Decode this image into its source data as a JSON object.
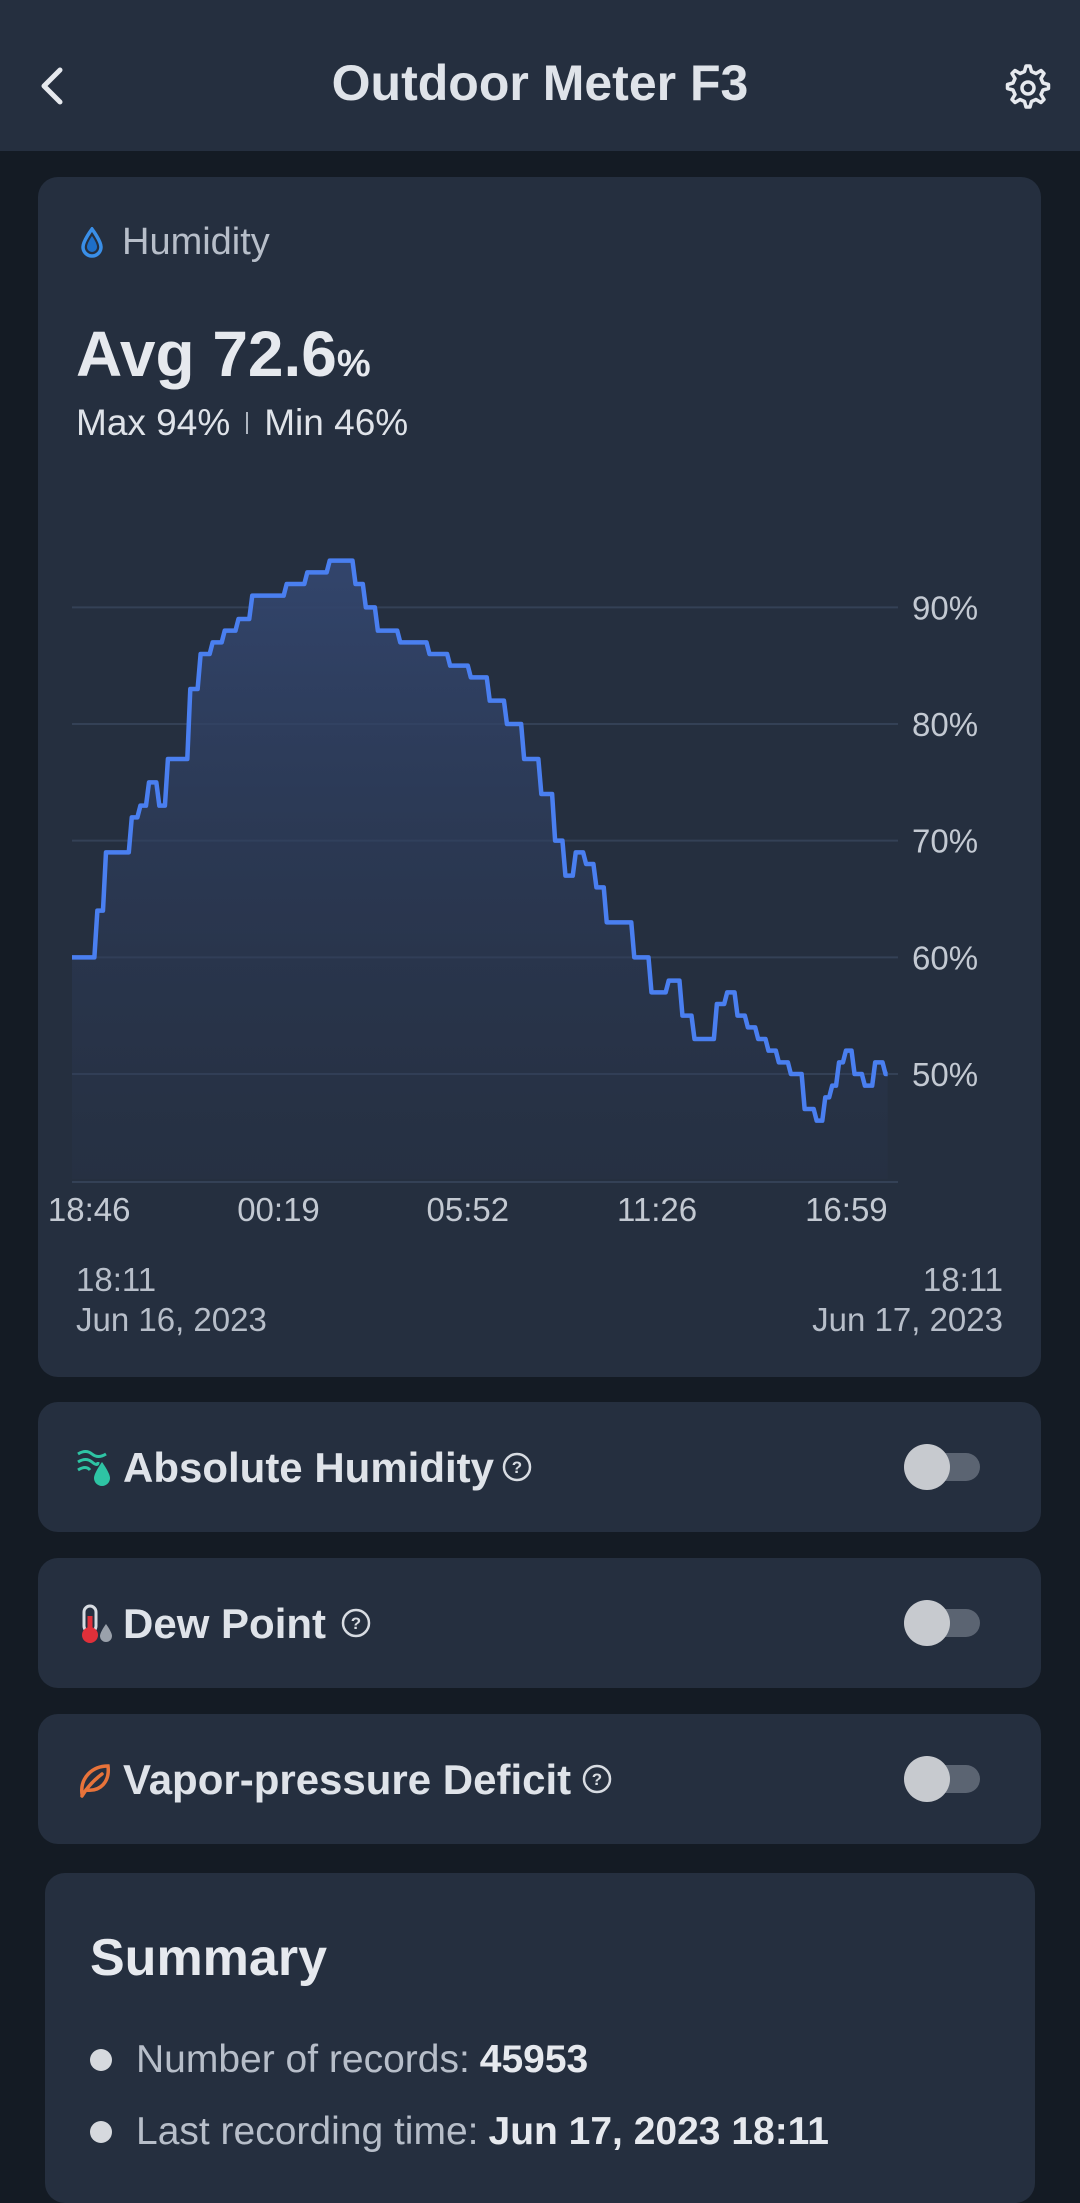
{
  "header": {
    "title": "Outdoor Meter F3",
    "back_icon": "chevron-left-icon",
    "settings_icon": "gear-icon"
  },
  "humidity": {
    "label": "Humidity",
    "icon": "droplet-icon",
    "avg_prefix": "Avg 72.6",
    "avg_unit": "%",
    "max": "Max 94%",
    "min": "Min 46%",
    "range_start_time": "18:11",
    "range_start_date": "Jun 16, 2023",
    "range_end_time": "18:11",
    "range_end_date": "Jun 17, 2023"
  },
  "chart_data": {
    "type": "area",
    "ylim": [
      41,
      95
    ],
    "y_ticks": [
      50,
      60,
      70,
      80,
      90
    ],
    "y_tick_labels": [
      "50%",
      "60%",
      "70%",
      "80%",
      "90%"
    ],
    "x_tick_labels": [
      "18:46",
      "00:19",
      "05:52",
      "11:26",
      "16:59"
    ],
    "x_tick_positions": [
      0.5,
      6.0,
      11.5,
      17.0,
      22.5
    ],
    "xlim": [
      0,
      24
    ],
    "line_color": "#4a7ff0",
    "grid": true,
    "x": [
      0,
      0.5,
      0.8,
      1.0,
      1.5,
      1.8,
      2.0,
      2.3,
      2.6,
      2.8,
      3.2,
      3.5,
      3.8,
      4.2,
      4.5,
      5.0,
      5.3,
      5.6,
      6.0,
      6.3,
      6.6,
      6.9,
      7.2,
      7.6,
      8.0,
      8.3,
      8.6,
      9.0,
      9.3,
      9.6,
      10.0,
      10.6,
      11.2,
      11.8,
      12.3,
      12.8,
      13.3,
      13.8,
      14.1,
      14.4,
      14.7,
      15.0,
      15.3,
      15.6,
      16.0,
      16.5,
      17.0,
      17.5,
      17.8,
      18.2,
      18.5,
      18.8,
      19.1,
      19.4,
      19.7,
      20.0,
      20.3,
      20.6,
      21.0,
      21.4,
      21.7,
      21.9,
      22.1,
      22.3,
      22.5,
      22.8,
      23.1,
      23.4,
      23.7
    ],
    "y": [
      60,
      60,
      64,
      69,
      69,
      72,
      73,
      75,
      73,
      77,
      77,
      83,
      86,
      87,
      88,
      89,
      91,
      91,
      91,
      92,
      92,
      93,
      93,
      94,
      94,
      92,
      90,
      88,
      88,
      87,
      87,
      86,
      85,
      84,
      82,
      80,
      77,
      74,
      70,
      67,
      69,
      68,
      66,
      63,
      63,
      60,
      57,
      58,
      55,
      53,
      53,
      56,
      57,
      55,
      54,
      53,
      52,
      51,
      50,
      47,
      46,
      48,
      49,
      51,
      52,
      50,
      49,
      51,
      50
    ]
  },
  "options": [
    {
      "label": "Absolute Humidity",
      "icon": "wind-droplet-icon",
      "enabled": false
    },
    {
      "label": "Dew Point",
      "icon": "thermometer-icon",
      "enabled": false
    },
    {
      "label": "Vapor-pressure Deficit",
      "icon": "leaf-icon",
      "enabled": false
    }
  ],
  "summary": {
    "title": "Summary",
    "records_label": "Number of records:",
    "records_value": "45953",
    "last_label": "Last recording time:",
    "last_value": "Jun 17, 2023 18:11"
  }
}
